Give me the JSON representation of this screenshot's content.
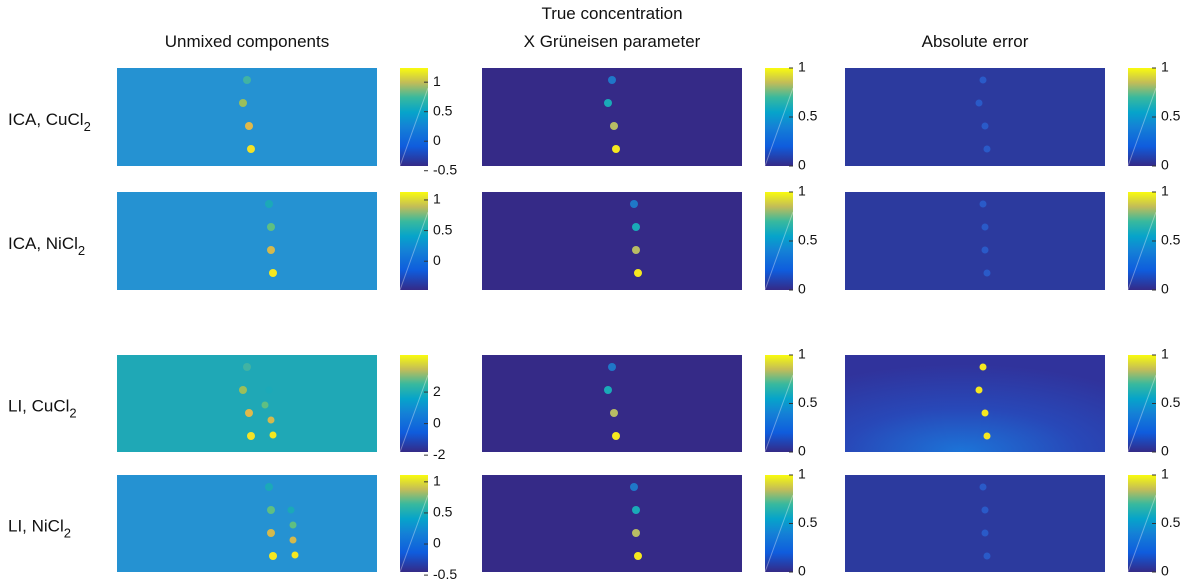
{
  "column_titles": [
    [
      "Unmixed components"
    ],
    [
      "True concentration",
      "X Grüneisen parameter"
    ],
    [
      "Absolute error"
    ]
  ],
  "rows": [
    {
      "label": "ICA, CuCl",
      "sub": "2",
      "colorbars": [
        {
          "lim": [
            -0.42,
            1.24
          ],
          "ticks": [
            -0.5,
            0,
            0.5,
            1
          ]
        },
        {
          "lim": [
            0,
            1
          ],
          "ticks": [
            0,
            0.5,
            1
          ]
        },
        {
          "lim": [
            0,
            1
          ],
          "ticks": [
            0,
            0.5,
            1
          ]
        }
      ]
    },
    {
      "label": "ICA, NiCl",
      "sub": "2",
      "colorbars": [
        {
          "lim": [
            -0.47,
            1.13
          ],
          "ticks": [
            0,
            0.5,
            1
          ]
        },
        {
          "lim": [
            0,
            1
          ],
          "ticks": [
            0,
            0.5,
            1
          ]
        },
        {
          "lim": [
            0,
            1
          ],
          "ticks": [
            0,
            0.5,
            1
          ]
        }
      ]
    },
    {
      "label": "LI, CuCl",
      "sub": "2",
      "colorbars": [
        {
          "lim": [
            -1.8,
            4.35
          ],
          "ticks": [
            -2,
            0,
            2
          ]
        },
        {
          "lim": [
            0,
            1
          ],
          "ticks": [
            0,
            0.5,
            1
          ]
        },
        {
          "lim": [
            0,
            1
          ],
          "ticks": [
            0,
            0.5,
            1
          ]
        }
      ]
    },
    {
      "label": "LI, NiCl",
      "sub": "2",
      "colorbars": [
        {
          "lim": [
            -0.45,
            1.11
          ],
          "ticks": [
            -0.5,
            0,
            0.5,
            1
          ]
        },
        {
          "lim": [
            0,
            1
          ],
          "ticks": [
            0,
            0.5,
            1
          ]
        },
        {
          "lim": [
            0,
            1
          ],
          "ticks": [
            0,
            0.5,
            1
          ]
        }
      ]
    }
  ]
}
